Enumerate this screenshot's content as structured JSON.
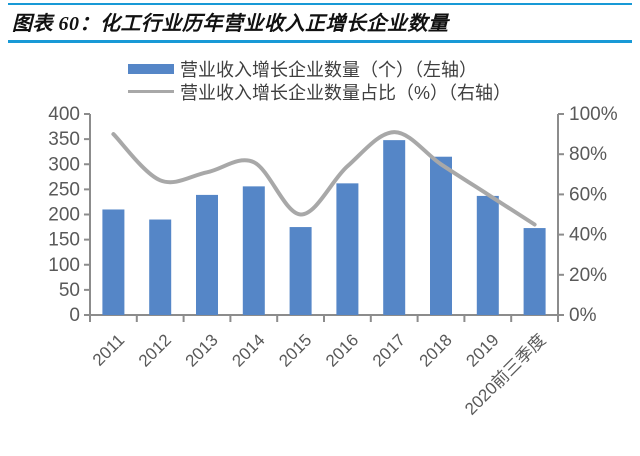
{
  "header": {
    "title": "图表 60：化工行业历年营业收入正增长企业数量"
  },
  "colors": {
    "rule_blue": "#1899D6",
    "bar_blue": "#5586C7",
    "line_gray": "#A8A8A8",
    "axis_gray": "#8C8C8C",
    "label_gray": "#595959"
  },
  "legend": {
    "items": [
      {
        "label": "营业收入增长企业数量（个）（左轴）",
        "swatch": "bar"
      },
      {
        "label": "营业收入增长企业数量占比（%）（右轴）",
        "swatch": "line"
      }
    ]
  },
  "chart_data": {
    "type": "bar",
    "title": "图表 60：化工行业历年营业收入正增长企业数量",
    "categories": [
      "2011",
      "2012",
      "2013",
      "2014",
      "2015",
      "2016",
      "2017",
      "2018",
      "2019",
      "2020前三季度"
    ],
    "series": [
      {
        "name": "营业收入增长企业数量（个）（左轴）",
        "type": "bar",
        "axis": "left",
        "values": [
          210,
          190,
          239,
          256,
          175,
          262,
          348,
          315,
          237,
          173
        ]
      },
      {
        "name": "营业收入增长企业数量占比（%）（右轴）",
        "type": "line",
        "axis": "right",
        "values": [
          90,
          67,
          71,
          76,
          50,
          74,
          91,
          75,
          60,
          45
        ]
      }
    ],
    "left_axis": {
      "min": 0,
      "max": 400,
      "step": 50,
      "labels": [
        "0",
        "50",
        "100",
        "150",
        "200",
        "250",
        "300",
        "350",
        "400"
      ]
    },
    "right_axis": {
      "min": 0,
      "max": 100,
      "step": 20,
      "labels": [
        "0%",
        "20%",
        "40%",
        "60%",
        "80%",
        "100%"
      ]
    },
    "grid": false,
    "legend_position": "top",
    "xlabel": "",
    "ylabel_left": "营业收入增长企业数量（个）",
    "ylabel_right": "营业收入增长企业数量占比（%）"
  }
}
